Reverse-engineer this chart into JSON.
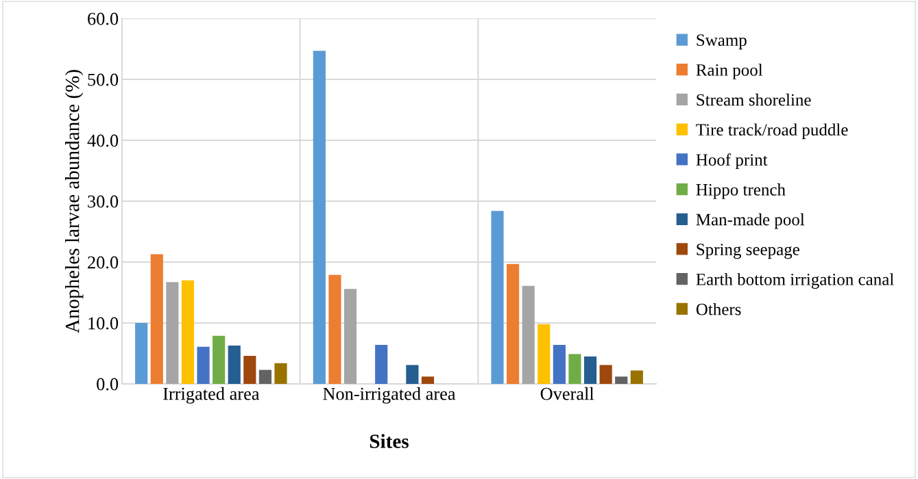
{
  "chart_data": {
    "type": "bar",
    "xlabel": "Sites",
    "ylabel": "Anopheles larvae abundance (%)",
    "categories": [
      "Irrigated area",
      "Non-irrigated area",
      "Overall"
    ],
    "series": [
      {
        "name": "Swamp",
        "color": "#5b9bd5",
        "values": [
          10.0,
          54.7,
          28.4
        ]
      },
      {
        "name": "Rain pool",
        "color": "#ed7d31",
        "values": [
          21.3,
          17.9,
          19.7
        ]
      },
      {
        "name": "Stream shoreline",
        "color": "#a5a5a5",
        "values": [
          16.7,
          15.6,
          16.1
        ]
      },
      {
        "name": "Tire track/road puddle",
        "color": "#ffc000",
        "values": [
          17.0,
          0,
          9.8
        ]
      },
      {
        "name": "Hoof print",
        "color": "#4472c4",
        "values": [
          6.1,
          6.4,
          6.4
        ]
      },
      {
        "name": "Hippo trench",
        "color": "#70ad47",
        "values": [
          7.9,
          0,
          4.9
        ]
      },
      {
        "name": "Man-made pool",
        "color": "#255e91",
        "values": [
          6.3,
          3.1,
          4.5
        ]
      },
      {
        "name": "Spring seepage",
        "color": "#9e480e",
        "values": [
          4.6,
          1.2,
          3.1
        ]
      },
      {
        "name": "Earth bottom irrigation canal",
        "color": "#636363",
        "values": [
          2.3,
          0,
          1.2
        ]
      },
      {
        "name": "Others",
        "color": "#997300",
        "values": [
          3.4,
          0,
          2.2
        ]
      }
    ],
    "ylim": [
      0,
      60
    ],
    "yticks": [
      {
        "value": 0,
        "label": "0.0"
      },
      {
        "value": 10,
        "label": "10.0"
      },
      {
        "value": 20,
        "label": "20.0"
      },
      {
        "value": 30,
        "label": "30.0"
      },
      {
        "value": 40,
        "label": "40.0"
      },
      {
        "value": 50,
        "label": "50.0"
      },
      {
        "value": 60,
        "label": "60.0"
      }
    ],
    "grid": true,
    "legend": "right"
  }
}
